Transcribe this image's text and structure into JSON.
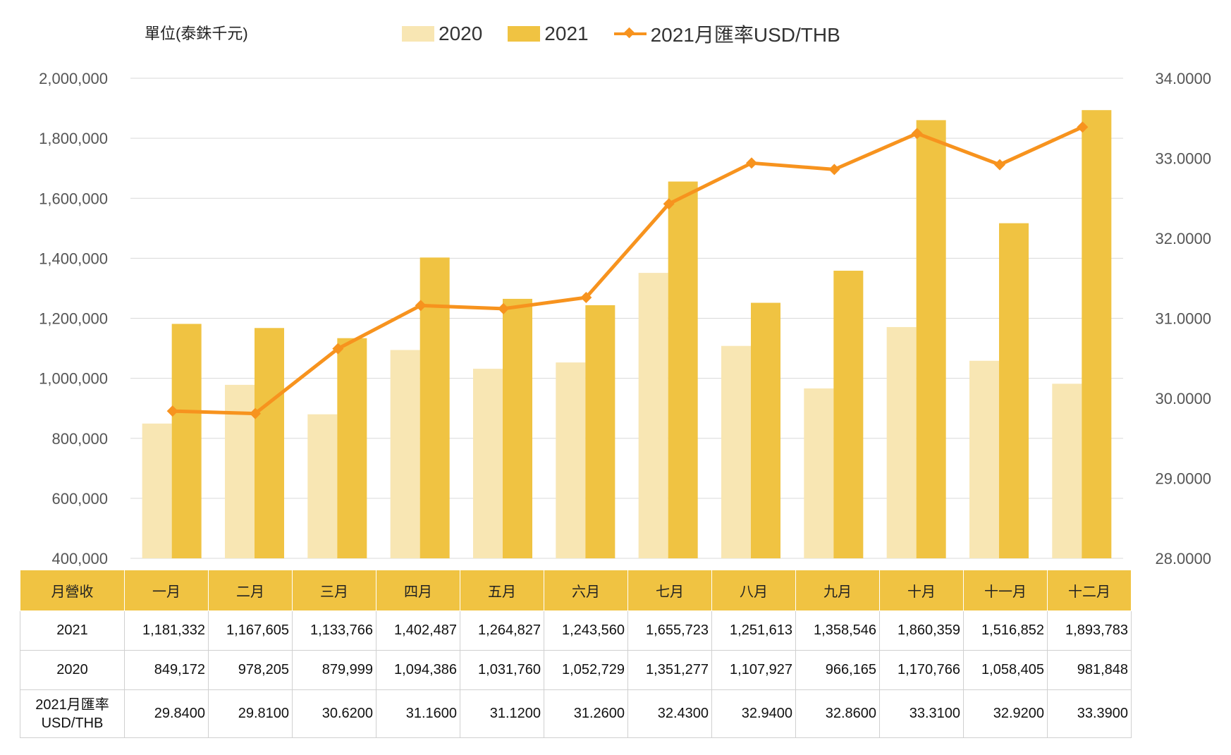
{
  "unit_label": "單位(泰銖千元)",
  "legend": {
    "s2020": "2020",
    "s2021": "2021",
    "rate": "2021月匯率USD/THB"
  },
  "colors": {
    "s2020": "#F8E6B3",
    "s2021": "#F0C342",
    "rate": "#F7931E",
    "grid": "#D9D9D9"
  },
  "table": {
    "header_label": "月營收",
    "row_2021_label": "2021",
    "row_2020_label": "2020",
    "row_rate_label_line1": "2021月匯率",
    "row_rate_label_line2": "USD/THB"
  },
  "chart_data": {
    "type": "bar",
    "categories": [
      "一月",
      "二月",
      "三月",
      "四月",
      "五月",
      "六月",
      "七月",
      "八月",
      "九月",
      "十月",
      "十一月",
      "十二月"
    ],
    "series": [
      {
        "name": "2020",
        "type": "bar",
        "axis": "left",
        "values": [
          849172,
          978205,
          879999,
          1094386,
          1031760,
          1052729,
          1351277,
          1107927,
          966165,
          1170766,
          1058405,
          981848
        ],
        "labels": [
          "849,172",
          "978,205",
          "879,999",
          "1,094,386",
          "1,031,760",
          "1,052,729",
          "1,351,277",
          "1,107,927",
          "966,165",
          "1,170,766",
          "1,058,405",
          "981,848"
        ]
      },
      {
        "name": "2021",
        "type": "bar",
        "axis": "left",
        "values": [
          1181332,
          1167605,
          1133766,
          1402487,
          1264827,
          1243560,
          1655723,
          1251613,
          1358546,
          1860359,
          1516852,
          1893783
        ],
        "labels": [
          "1,181,332",
          "1,167,605",
          "1,133,766",
          "1,402,487",
          "1,264,827",
          "1,243,560",
          "1,655,723",
          "1,251,613",
          "1,358,546",
          "1,860,359",
          "1,516,852",
          "1,893,783"
        ]
      },
      {
        "name": "2021月匯率USD/THB",
        "type": "line",
        "axis": "right",
        "values": [
          29.84,
          29.81,
          30.62,
          31.16,
          31.12,
          31.26,
          32.43,
          32.94,
          32.86,
          33.31,
          32.92,
          33.39
        ],
        "labels": [
          "29.8400",
          "29.8100",
          "30.6200",
          "31.1600",
          "31.1200",
          "31.2600",
          "32.4300",
          "32.9400",
          "32.8600",
          "33.3100",
          "32.9200",
          "33.3900"
        ]
      }
    ],
    "y_left": {
      "min": 400000,
      "max": 2000000,
      "step": 200000,
      "tick_labels": [
        "400,000",
        "600,000",
        "800,000",
        "1,000,000",
        "1,200,000",
        "1,400,000",
        "1,600,000",
        "1,800,000",
        "2,000,000"
      ]
    },
    "y_right": {
      "min": 28,
      "max": 34,
      "step": 1,
      "tick_labels": [
        "28.0000",
        "29.0000",
        "30.0000",
        "31.0000",
        "32.0000",
        "33.0000",
        "34.0000"
      ]
    },
    "grid": true,
    "legend_position": "top"
  }
}
